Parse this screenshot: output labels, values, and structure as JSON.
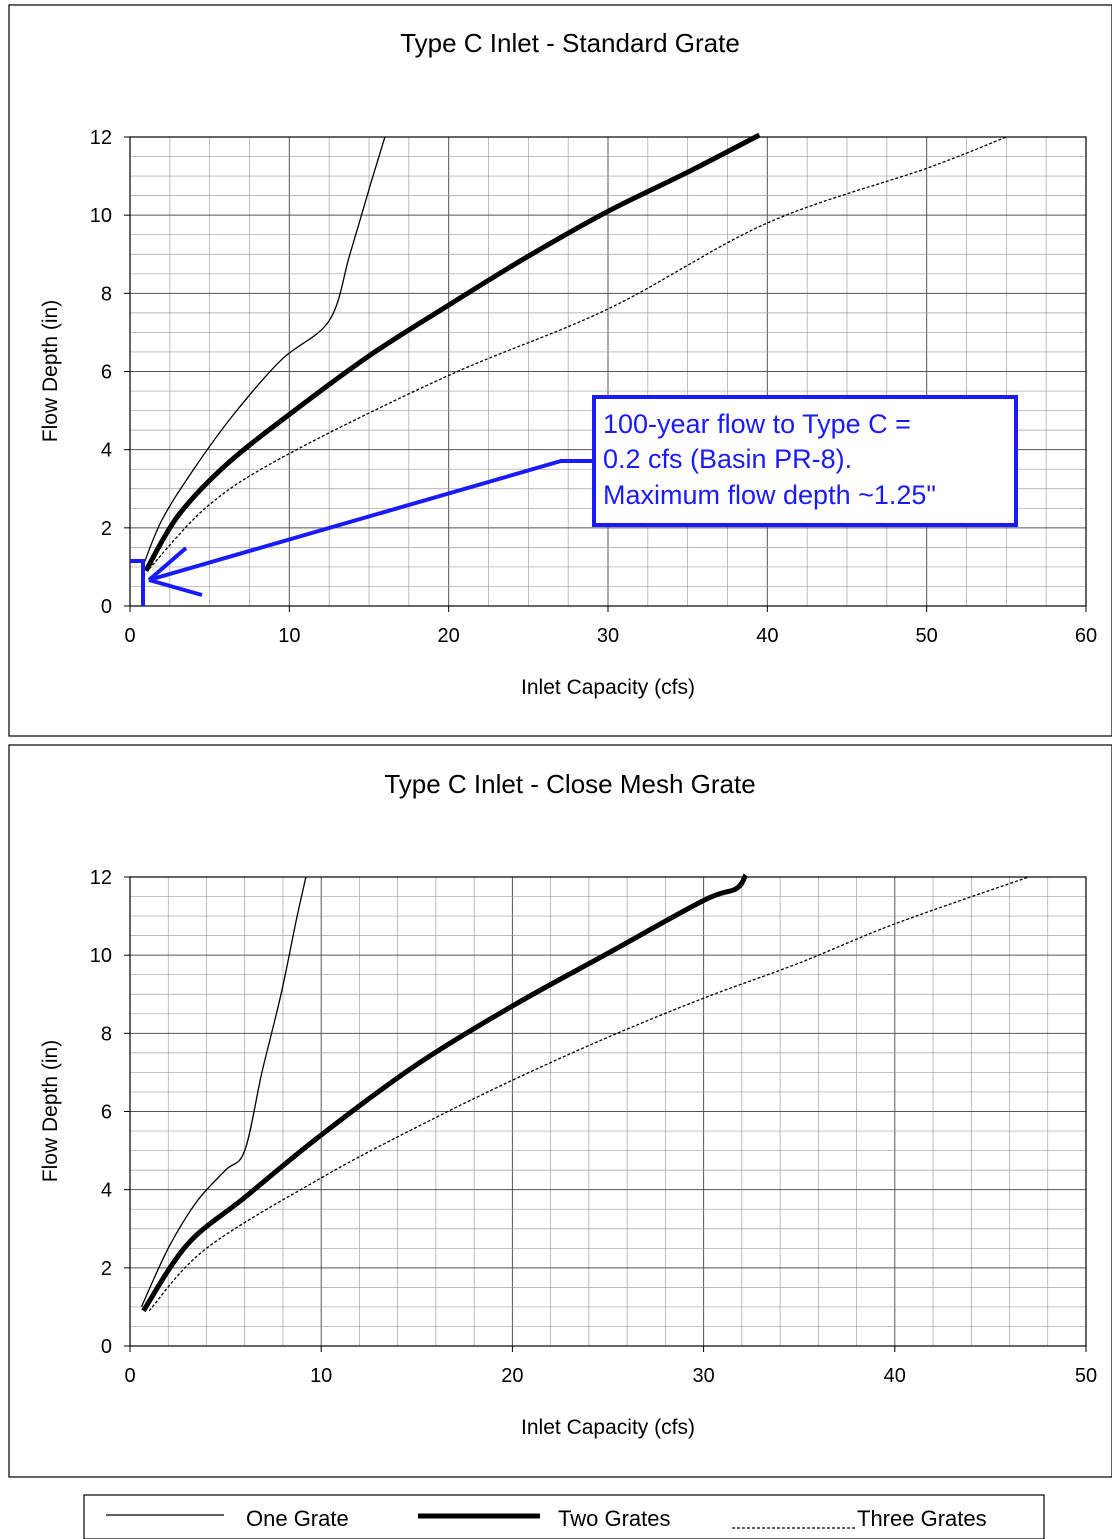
{
  "chart_data": [
    {
      "type": "line",
      "title": "Type C Inlet - Standard Grate",
      "xlabel": "Inlet Capacity (cfs)",
      "ylabel": "Flow Depth (in)",
      "xlim": [
        0,
        60
      ],
      "ylim": [
        0,
        12
      ],
      "xticks": [
        "0",
        "10",
        "20",
        "30",
        "40",
        "50",
        "60"
      ],
      "yticks": [
        "0",
        "2",
        "4",
        "6",
        "8",
        "10",
        "12"
      ],
      "grid": true,
      "series": [
        {
          "name": "One Grate",
          "style": "thin",
          "x": [
            0.8,
            2,
            4,
            6.5,
            9.5,
            12.5,
            13.8,
            15.1,
            16
          ],
          "y": [
            1.0,
            2.2,
            3.5,
            4.9,
            6.3,
            7.3,
            9.0,
            10.8,
            12.0
          ]
        },
        {
          "name": "Two Grates",
          "style": "thick",
          "x": [
            1,
            3,
            6,
            10,
            15,
            20,
            25,
            30,
            35,
            39.5
          ],
          "y": [
            0.9,
            2.3,
            3.6,
            4.9,
            6.4,
            7.7,
            8.95,
            10.1,
            11.1,
            12.05
          ]
        },
        {
          "name": "Three Grates",
          "style": "dashed",
          "x": [
            1.2,
            5,
            10,
            20,
            30,
            40,
            50,
            55
          ],
          "y": [
            0.95,
            2.6,
            3.9,
            5.9,
            7.6,
            9.8,
            11.2,
            12.0
          ]
        }
      ],
      "annotation": {
        "lines": [
          "100-year flow to Type C =",
          "0.2 cfs (Basin PR-8).",
          "Maximum flow depth ~1.25\""
        ],
        "color": "#1a1aff",
        "points_to": {
          "x": 0.2,
          "y": 1.25
        }
      }
    },
    {
      "type": "line",
      "title": "Type C Inlet - Close Mesh Grate",
      "xlabel": "Inlet Capacity (cfs)",
      "ylabel": "Flow Depth (in)",
      "xlim": [
        0,
        50
      ],
      "ylim": [
        0,
        12
      ],
      "xticks": [
        "0",
        "10",
        "20",
        "30",
        "40",
        "50"
      ],
      "yticks": [
        "0",
        "2",
        "4",
        "6",
        "8",
        "10",
        "12"
      ],
      "grid": true,
      "series": [
        {
          "name": "One Grate",
          "style": "thin",
          "x": [
            0.6,
            2,
            3.5,
            5,
            6,
            6.9,
            7.9,
            8.7,
            9.2
          ],
          "y": [
            1.0,
            2.5,
            3.7,
            4.5,
            5.0,
            7.0,
            9.0,
            10.9,
            12.0
          ]
        },
        {
          "name": "Two Grates",
          "style": "thick",
          "x": [
            0.7,
            3,
            6,
            10,
            15,
            20,
            25,
            30,
            31.7,
            32.2
          ],
          "y": [
            0.9,
            2.6,
            3.8,
            5.4,
            7.2,
            8.7,
            10.05,
            11.4,
            11.7,
            12.05
          ]
        },
        {
          "name": "Three Grates",
          "style": "dashed",
          "x": [
            1,
            4,
            10,
            15,
            20,
            25,
            30,
            35,
            40,
            47
          ],
          "y": [
            0.9,
            2.5,
            4.3,
            5.6,
            6.8,
            7.9,
            8.9,
            9.8,
            10.8,
            12.0
          ]
        }
      ]
    }
  ],
  "legend": {
    "items": [
      {
        "label": "One Grate",
        "style": "thin"
      },
      {
        "label": "Two Grates",
        "style": "thick"
      },
      {
        "label": "Three Grates",
        "style": "dashed"
      }
    ]
  }
}
